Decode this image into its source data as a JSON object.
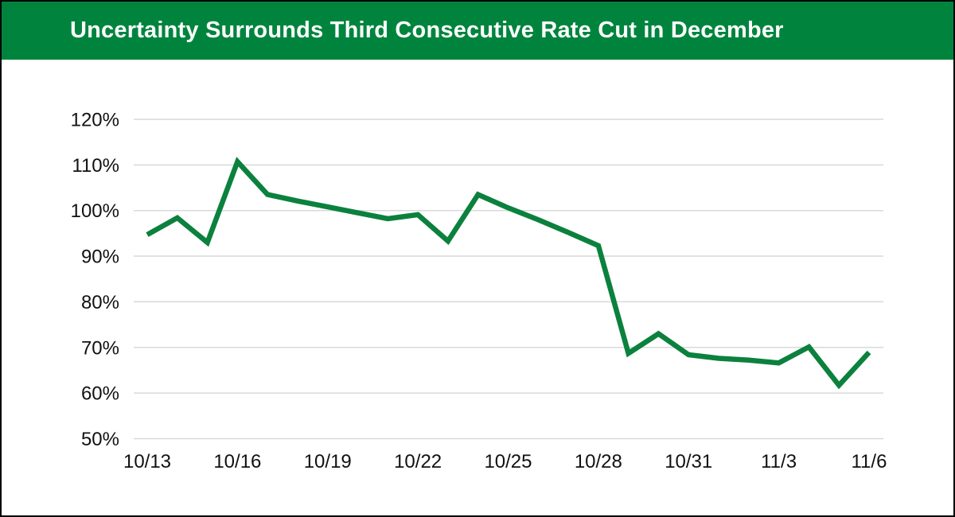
{
  "header": {
    "title": "Uncertainty Surrounds Third Consecutive Rate Cut in December",
    "background_color": "#00843D",
    "text_color": "#FFFFFF"
  },
  "chart_data": {
    "type": "line",
    "title": "Uncertainty Surrounds Third Consecutive Rate Cut in December",
    "x": [
      "10/13",
      "10/14",
      "10/15",
      "10/16",
      "10/17",
      "10/18",
      "10/19",
      "10/20",
      "10/21",
      "10/22",
      "10/23",
      "10/24",
      "10/25",
      "10/26",
      "10/27",
      "10/28",
      "10/29",
      "10/30",
      "10/31",
      "11/1",
      "11/2",
      "11/3",
      "11/4",
      "11/5",
      "11/6"
    ],
    "values": [
      94.7,
      98.4,
      93.0,
      110.7,
      103.5,
      102.1,
      100.8,
      99.5,
      98.2,
      99.1,
      93.3,
      103.5,
      100.6,
      98.0,
      95.2,
      92.3,
      68.7,
      73.0,
      68.4,
      67.6,
      67.2,
      66.6,
      70.1,
      61.7,
      68.9
    ],
    "x_tick_labels": [
      "10/13",
      "10/16",
      "10/19",
      "10/22",
      "10/25",
      "10/28",
      "10/31",
      "11/3",
      "11/6"
    ],
    "y_tick_labels": [
      "50%",
      "60%",
      "70%",
      "80%",
      "90%",
      "100%",
      "110%",
      "120%"
    ],
    "ylim": [
      50,
      120
    ],
    "y_step": 10,
    "xlabel": "",
    "ylabel": "",
    "grid": true,
    "legend": false,
    "line_color": "#0B813D",
    "grid_color": "#D9D9D9",
    "tick_label_color": "#111111"
  }
}
